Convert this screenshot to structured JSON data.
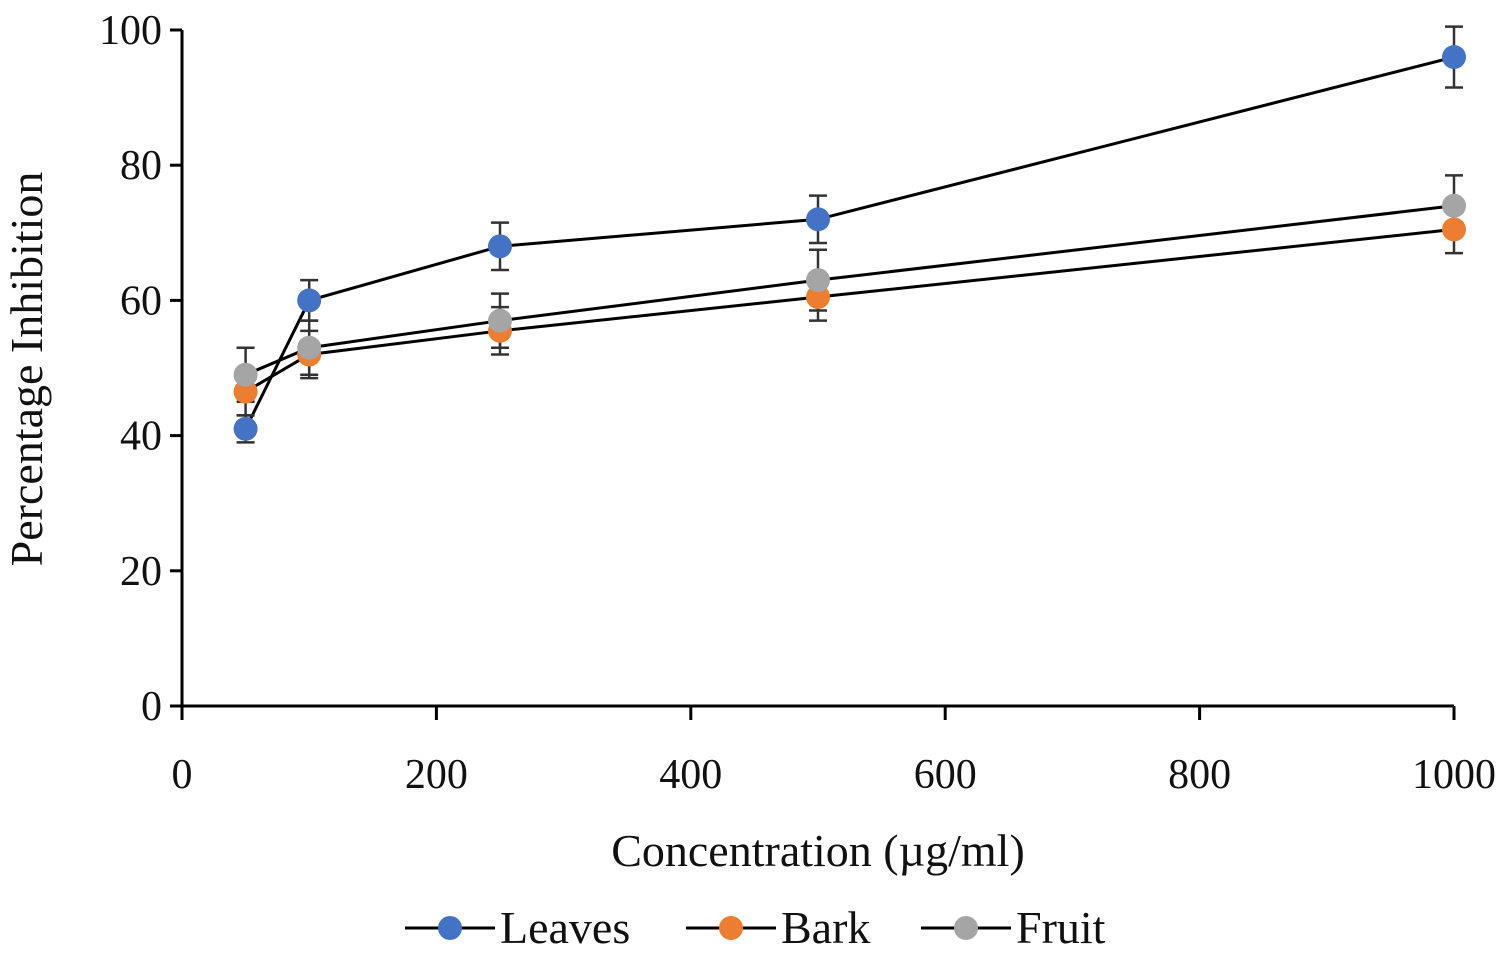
{
  "chart_data": {
    "type": "line",
    "title": "",
    "xlabel": "Concentration (µg/ml)",
    "ylabel": "Percentage Inhibition",
    "xlim": [
      0,
      1000
    ],
    "ylim": [
      0,
      100
    ],
    "xticks": [
      0,
      200,
      400,
      600,
      800,
      1000
    ],
    "yticks": [
      0,
      20,
      40,
      60,
      80,
      100
    ],
    "x": [
      50,
      100,
      250,
      500,
      1000
    ],
    "legend_position": "bottom",
    "series": [
      {
        "name": "Leaves",
        "color": "#4472C4",
        "values": [
          41,
          60,
          68,
          72,
          96
        ],
        "errors": [
          2,
          3,
          3.5,
          3.5,
          4.5
        ]
      },
      {
        "name": "Bark",
        "color": "#ED7D31",
        "values": [
          46.5,
          52,
          55.5,
          60.5,
          70.5
        ],
        "errors": [
          3.5,
          3.5,
          3.5,
          3.5,
          3.5
        ]
      },
      {
        "name": "Fruit",
        "color": "#A5A5A5",
        "values": [
          49,
          53,
          57,
          63,
          74
        ],
        "errors": [
          4,
          4,
          4,
          4.5,
          4.5
        ]
      }
    ]
  }
}
